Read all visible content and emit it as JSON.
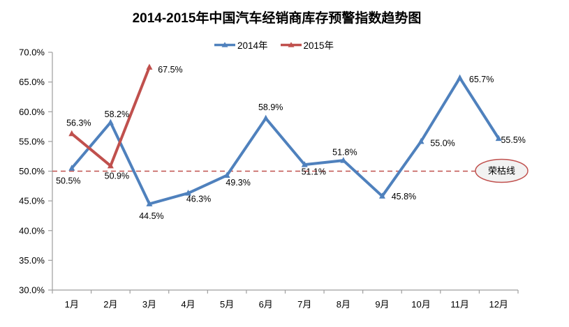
{
  "chart_data": {
    "type": "line",
    "title": "2014-2015年中国汽车经销商库存预警指数趋势图",
    "categories": [
      "1月",
      "2月",
      "3月",
      "4月",
      "5月",
      "6月",
      "7月",
      "8月",
      "9月",
      "10月",
      "11月",
      "12月"
    ],
    "series": [
      {
        "name": "2014年",
        "color": "#4F81BD",
        "values": [
          50.5,
          58.2,
          44.5,
          46.3,
          49.3,
          58.9,
          51.1,
          51.8,
          45.8,
          55.0,
          65.7,
          55.5
        ],
        "data_labels": [
          "50.5%",
          "58.2%",
          "44.5%",
          "46.3%",
          "49.3%",
          "58.9%",
          "51.1%",
          "51.8%",
          "45.8%",
          "55.0%",
          "65.7%",
          "55.5%"
        ],
        "label_offsets": [
          [
            -5,
            18
          ],
          [
            9,
            -12
          ],
          [
            3,
            17
          ],
          [
            15,
            8
          ],
          [
            16,
            10
          ],
          [
            7,
            -16
          ],
          [
            13,
            10
          ],
          [
            2,
            -12
          ],
          [
            31,
            0
          ],
          [
            31,
            2
          ],
          [
            31,
            2
          ],
          [
            21,
            2
          ]
        ]
      },
      {
        "name": "2015年",
        "color": "#C0504D",
        "values": [
          56.3,
          50.9,
          67.5
        ],
        "data_labels": [
          "56.3%",
          "50.9%",
          "67.5%"
        ],
        "label_offsets": [
          [
            10,
            -16
          ],
          [
            9,
            14
          ],
          [
            30,
            3
          ]
        ]
      }
    ],
    "xlabel": "",
    "ylabel": "",
    "ylim": [
      30,
      70
    ],
    "ytick_step": 5,
    "y_ticks": [
      "30.0%",
      "35.0%",
      "40.0%",
      "45.0%",
      "50.0%",
      "55.0%",
      "60.0%",
      "65.0%",
      "70.0%"
    ],
    "grid": false,
    "legend_position": "top",
    "axis_color": "#9e9e9e",
    "reference_line": {
      "value": 50.0,
      "color": "#C0504D",
      "style": "dashed",
      "annotation": "荣枯线",
      "annotation_fill": "#f2f2f2"
    }
  }
}
